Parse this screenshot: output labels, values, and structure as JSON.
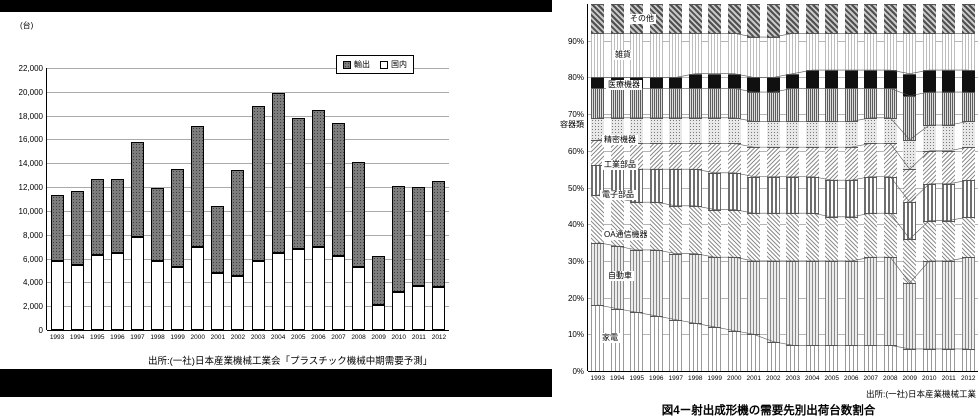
{
  "left_chart": {
    "unit_label": "(台)",
    "source": "出所:(一社)日本産業機械工業会「プラスチック機械中期需要予測」"
  },
  "right_chart": {
    "source": "出所:(一社)日本産業機械工業",
    "caption": "図4ー射出成形機の需要先別出荷台数割合"
  },
  "chart_data": [
    {
      "type": "bar",
      "stacked": true,
      "title": "",
      "ylabel": "台",
      "ylim": [
        0,
        22000
      ],
      "ytick_interval": 2000,
      "grid": true,
      "legend_position": "top-right",
      "categories": [
        "1993",
        "1994",
        "1995",
        "1996",
        "1997",
        "1998",
        "1999",
        "2000",
        "2001",
        "2002",
        "2003",
        "2004",
        "2005",
        "2006",
        "2007",
        "2008",
        "2009",
        "2010",
        "2011",
        "2012"
      ],
      "series": [
        {
          "name": "国内",
          "values": [
            5800,
            5500,
            6300,
            6500,
            7800,
            5800,
            5300,
            7000,
            4800,
            4500,
            5800,
            6500,
            6800,
            7000,
            6200,
            5300,
            2100,
            3200,
            3700,
            3600
          ]
        },
        {
          "name": "輸出",
          "values": [
            5500,
            6200,
            6400,
            6200,
            8000,
            6100,
            8200,
            10100,
            5600,
            8900,
            13000,
            13400,
            11000,
            11500,
            11200,
            8800,
            4100,
            8900,
            8300,
            8900
          ]
        }
      ]
    },
    {
      "type": "bar",
      "stacked": true,
      "percent": true,
      "title": "図4ー射出成形機の需要先別出荷台数割合",
      "ylim": [
        0,
        100
      ],
      "ytick_interval": 10,
      "grid": true,
      "categories": [
        "1993",
        "1994",
        "1995",
        "1996",
        "1997",
        "1998",
        "1999",
        "2000",
        "2001",
        "2002",
        "2003",
        "2004",
        "2005",
        "2006",
        "2007",
        "2008",
        "2009",
        "2010",
        "2011",
        "2012"
      ],
      "series": [
        {
          "name": "家電",
          "values": [
            18,
            17,
            16,
            15,
            14,
            13,
            12,
            11,
            10,
            8,
            7,
            7,
            7,
            7,
            7,
            7,
            6,
            6,
            6,
            6
          ]
        },
        {
          "name": "自動車",
          "values": [
            17,
            17,
            17,
            18,
            18,
            19,
            19,
            20,
            20,
            22,
            23,
            23,
            23,
            23,
            24,
            24,
            18,
            24,
            24,
            25
          ]
        },
        {
          "name": "OA通信機器",
          "values": [
            13,
            13,
            13,
            13,
            13,
            13,
            13,
            13,
            13,
            13,
            13,
            13,
            12,
            12,
            12,
            12,
            12,
            11,
            11,
            11
          ]
        },
        {
          "name": "電子部品",
          "values": [
            8,
            9,
            9,
            9,
            10,
            10,
            10,
            10,
            10,
            10,
            10,
            10,
            10,
            10,
            10,
            10,
            10,
            10,
            10,
            10
          ]
        },
        {
          "name": "工業部品",
          "values": [
            7,
            7,
            7,
            7,
            7,
            7,
            8,
            8,
            8,
            8,
            8,
            8,
            9,
            9,
            9,
            9,
            9,
            9,
            9,
            9
          ]
        },
        {
          "name": "精密機器",
          "values": [
            6,
            6,
            7,
            7,
            7,
            7,
            7,
            7,
            7,
            7,
            7,
            7,
            7,
            7,
            7,
            7,
            8,
            7,
            7,
            7
          ]
        },
        {
          "name": "容器類",
          "values": [
            8,
            8,
            8,
            8,
            8,
            8,
            8,
            8,
            8,
            8,
            9,
            9,
            9,
            9,
            8,
            8,
            12,
            9,
            9,
            8
          ]
        },
        {
          "name": "医療機器",
          "values": [
            3,
            3,
            3,
            3,
            3,
            4,
            4,
            4,
            4,
            4,
            4,
            5,
            5,
            5,
            5,
            5,
            6,
            6,
            6,
            6
          ]
        },
        {
          "name": "雑貨",
          "values": [
            12,
            12,
            12,
            12,
            12,
            11,
            11,
            11,
            11,
            11,
            11,
            10,
            10,
            10,
            10,
            10,
            11,
            10,
            10,
            10
          ]
        },
        {
          "name": "その他",
          "values": [
            8,
            8,
            8,
            8,
            8,
            8,
            8,
            8,
            9,
            9,
            8,
            8,
            8,
            8,
            8,
            8,
            8,
            8,
            8,
            8
          ]
        }
      ],
      "labels": [
        {
          "text": "その他",
          "y": 96,
          "x": 40
        },
        {
          "text": "雑貨",
          "y": 86,
          "x": 25
        },
        {
          "text": "医療機器",
          "y": 78,
          "x": 18
        },
        {
          "text": "容器類",
          "y": 67,
          "x": -30
        },
        {
          "text": "精密機器",
          "y": 63,
          "x": 14
        },
        {
          "text": "工業部品",
          "y": 56,
          "x": 14
        },
        {
          "text": "電子部品",
          "y": 48,
          "x": 12
        },
        {
          "text": "OA通信機器",
          "y": 37,
          "x": 14
        },
        {
          "text": "自動車",
          "y": 26,
          "x": 18
        },
        {
          "text": "家電",
          "y": 9,
          "x": 12
        }
      ]
    }
  ]
}
